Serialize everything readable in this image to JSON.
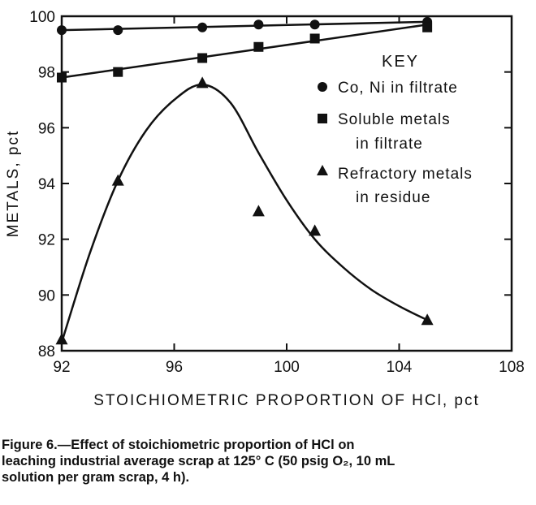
{
  "chart_data": {
    "type": "scatter",
    "xlabel": "STOICHIOMETRIC PROPORTION OF HCl, pct",
    "ylabel": "METALS, pct",
    "xlim": [
      92,
      108
    ],
    "ylim": [
      88,
      100
    ],
    "x_ticks": [
      "92",
      "96",
      "100",
      "104",
      "108"
    ],
    "y_ticks": [
      "88",
      "90",
      "92",
      "94",
      "96",
      "98",
      "100"
    ],
    "legend_title": "KEY",
    "legend_placement": "inside right",
    "grid": false,
    "series": [
      {
        "name": "Co, Ni in filtrate",
        "marker": "circle",
        "points": [
          {
            "x": 92,
            "y": 99.5
          },
          {
            "x": 94,
            "y": 99.5
          },
          {
            "x": 97,
            "y": 99.6
          },
          {
            "x": 99,
            "y": 99.7
          },
          {
            "x": 101,
            "y": 99.7
          },
          {
            "x": 105,
            "y": 99.8
          }
        ],
        "fit_line": [
          {
            "x": 92,
            "y": 99.5
          },
          {
            "x": 105,
            "y": 99.8
          }
        ]
      },
      {
        "name": "Soluble metals in filtrate",
        "legend_lines": [
          "Soluble metals",
          "in filtrate"
        ],
        "marker": "square",
        "points": [
          {
            "x": 92,
            "y": 97.8
          },
          {
            "x": 94,
            "y": 98.0
          },
          {
            "x": 97,
            "y": 98.5
          },
          {
            "x": 99,
            "y": 98.9
          },
          {
            "x": 101,
            "y": 99.2
          },
          {
            "x": 105,
            "y": 99.6
          }
        ],
        "fit_line": [
          {
            "x": 92,
            "y": 97.8
          },
          {
            "x": 105,
            "y": 99.7
          }
        ]
      },
      {
        "name": "Refractory metals in residue",
        "legend_lines": [
          "Refractory metals",
          "in residue"
        ],
        "marker": "triangle",
        "points": [
          {
            "x": 92,
            "y": 88.4
          },
          {
            "x": 94,
            "y": 94.1
          },
          {
            "x": 97,
            "y": 97.6
          },
          {
            "x": 99,
            "y": 93.0
          },
          {
            "x": 101,
            "y": 92.3
          },
          {
            "x": 105,
            "y": 89.1
          }
        ],
        "curve": [
          {
            "x": 92.0,
            "y": 88.3
          },
          {
            "x": 93.0,
            "y": 91.5
          },
          {
            "x": 94.0,
            "y": 94.1
          },
          {
            "x": 95.0,
            "y": 95.9
          },
          {
            "x": 96.0,
            "y": 97.0
          },
          {
            "x": 97.0,
            "y": 97.55
          },
          {
            "x": 98.0,
            "y": 96.9
          },
          {
            "x": 99.0,
            "y": 95.1
          },
          {
            "x": 100.0,
            "y": 93.4
          },
          {
            "x": 101.0,
            "y": 92.0
          },
          {
            "x": 102.0,
            "y": 91.0
          },
          {
            "x": 103.0,
            "y": 90.2
          },
          {
            "x": 104.0,
            "y": 89.6
          },
          {
            "x": 105.0,
            "y": 89.1
          }
        ]
      }
    ]
  },
  "caption": {
    "line1": "Figure 6.—Effect of stoichiometric proportion of HCl on",
    "line2": "leaching industrial average scrap at 125° C (50 psig O₂, 10 mL",
    "line3": "solution per gram scrap, 4 h)."
  }
}
